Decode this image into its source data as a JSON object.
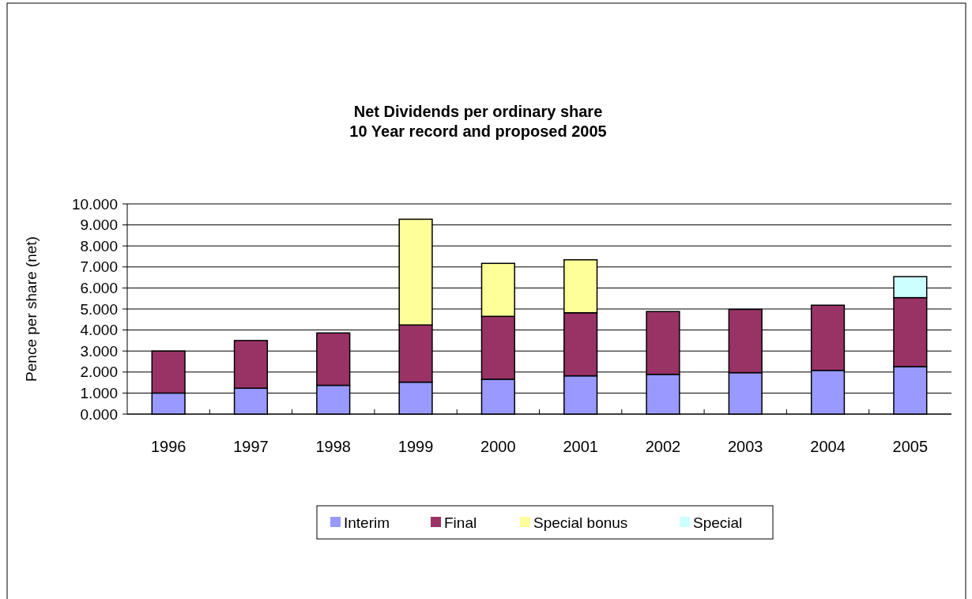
{
  "chart_data": {
    "type": "bar",
    "stacked": true,
    "title": "Net Dividends per ordinary share\n10 Year record and proposed 2005",
    "ylabel": "Pence per share (net)",
    "categories": [
      "1996",
      "1997",
      "1998",
      "1999",
      "2000",
      "2001",
      "2002",
      "2003",
      "2004",
      "2005"
    ],
    "series": [
      {
        "name": "Interim",
        "color": "#9999ff",
        "values": [
          1.0,
          1.23,
          1.37,
          1.52,
          1.66,
          1.82,
          1.89,
          1.97,
          2.08,
          2.26
        ]
      },
      {
        "name": "Final",
        "color": "#993366",
        "values": [
          2.0,
          2.27,
          2.49,
          2.72,
          2.99,
          3.0,
          2.99,
          3.01,
          3.1,
          3.28
        ]
      },
      {
        "name": "Special bonus",
        "color": "#ffff99",
        "values": [
          null,
          null,
          null,
          5.03,
          2.52,
          2.52,
          null,
          null,
          null,
          null
        ]
      },
      {
        "name": "Special",
        "color": "#ccffff",
        "values": [
          null,
          null,
          null,
          null,
          null,
          null,
          null,
          null,
          null,
          1.0
        ]
      }
    ],
    "ylim": [
      0,
      10
    ],
    "yticks": [
      {
        "value": 0,
        "label": "0.000"
      },
      {
        "value": 1,
        "label": "1.000"
      },
      {
        "value": 2,
        "label": "2.000"
      },
      {
        "value": 3,
        "label": "3.000"
      },
      {
        "value": 4,
        "label": "4.000"
      },
      {
        "value": 5,
        "label": "5.000"
      },
      {
        "value": 6,
        "label": "6.000"
      },
      {
        "value": 7,
        "label": "7.000"
      },
      {
        "value": 8,
        "label": "8.000"
      },
      {
        "value": 9,
        "label": "9.000"
      },
      {
        "value": 10,
        "label": "10.000"
      }
    ],
    "grid": "y",
    "legend": "bottom"
  }
}
